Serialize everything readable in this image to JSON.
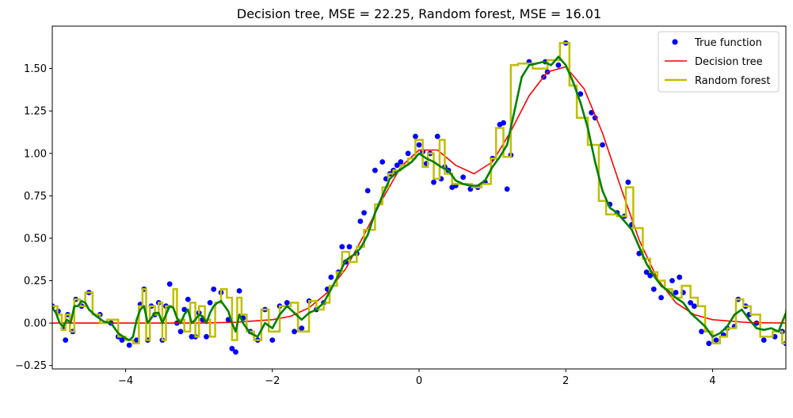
{
  "chart_data": {
    "type": "line",
    "title": "Decision tree, MSE = 22.25, Random forest, MSE = 16.01",
    "xlabel": "",
    "ylabel": "",
    "xlim": [
      -5,
      5
    ],
    "ylim": [
      -0.27,
      1.75
    ],
    "xticks": [
      -4,
      -2,
      0,
      2,
      4
    ],
    "xtick_labels": [
      "−4",
      "−2",
      "0",
      "2",
      "4"
    ],
    "yticks": [
      -0.25,
      0.0,
      0.25,
      0.5,
      0.75,
      1.0,
      1.25,
      1.5
    ],
    "ytick_labels": [
      "−0.25",
      "0.00",
      "0.25",
      "0.50",
      "0.75",
      "1.00",
      "1.25",
      "1.50"
    ],
    "grid": false,
    "legend_position": "top-right",
    "legend": [
      {
        "label": "True function",
        "color": "#0000ff",
        "kind": "marker"
      },
      {
        "label": "Decision tree",
        "color": "#ff0000",
        "kind": "line"
      },
      {
        "label": "Random forest",
        "color": "#bfbf00",
        "kind": "line"
      }
    ],
    "series": [
      {
        "name": "True function",
        "type": "scatter",
        "color": "#0000ff",
        "x": [
          -5.0,
          -4.92,
          -4.85,
          -4.82,
          -4.79,
          -4.72,
          -4.68,
          -4.6,
          -4.5,
          -4.35,
          -4.2,
          -4.1,
          -4.05,
          -3.95,
          -3.85,
          -3.8,
          -3.75,
          -3.7,
          -3.65,
          -3.6,
          -3.55,
          -3.5,
          -3.45,
          -3.4,
          -3.3,
          -3.25,
          -3.2,
          -3.15,
          -3.1,
          -3.05,
          -3.0,
          -2.95,
          -2.9,
          -2.85,
          -2.8,
          -2.7,
          -2.6,
          -2.55,
          -2.5,
          -2.45,
          -2.4,
          -2.3,
          -2.2,
          -2.1,
          -2.0,
          -1.9,
          -1.8,
          -1.7,
          -1.6,
          -1.5,
          -1.4,
          -1.3,
          -1.25,
          -1.2,
          -1.1,
          -1.05,
          -1.0,
          -0.95,
          -0.85,
          -0.8,
          -0.75,
          -0.7,
          -0.6,
          -0.5,
          -0.45,
          -0.4,
          -0.35,
          -0.3,
          -0.25,
          -0.15,
          -0.05,
          0.0,
          0.05,
          0.1,
          0.15,
          0.2,
          0.25,
          0.3,
          0.35,
          0.4,
          0.45,
          0.5,
          0.6,
          0.7,
          0.8,
          0.9,
          1.0,
          1.1,
          1.15,
          1.2,
          1.25,
          1.5,
          1.7,
          1.72,
          1.75,
          1.9,
          2.0,
          2.2,
          2.35,
          2.4,
          2.5,
          2.6,
          2.7,
          2.8,
          2.85,
          2.9,
          3.0,
          3.1,
          3.15,
          3.2,
          3.3,
          3.45,
          3.5,
          3.55,
          3.6,
          3.7,
          3.75,
          3.85,
          3.95,
          4.05,
          4.15,
          4.2,
          4.3,
          4.35,
          4.45,
          4.5,
          4.6,
          4.7,
          4.85,
          4.95,
          5.0
        ],
        "y": [
          0.1,
          0.07,
          -0.03,
          -0.1,
          0.05,
          -0.05,
          0.14,
          0.1,
          0.18,
          0.05,
          0.0,
          -0.08,
          -0.1,
          -0.13,
          -0.1,
          0.11,
          0.2,
          -0.1,
          0.1,
          0.05,
          0.12,
          -0.1,
          0.1,
          0.23,
          0.0,
          -0.05,
          0.08,
          0.14,
          -0.08,
          -0.08,
          0.06,
          0.02,
          -0.08,
          0.12,
          0.2,
          0.18,
          0.02,
          -0.15,
          -0.17,
          0.19,
          0.03,
          -0.05,
          -0.1,
          0.08,
          -0.1,
          0.1,
          0.12,
          -0.05,
          -0.03,
          0.13,
          0.08,
          0.12,
          0.2,
          0.27,
          0.3,
          0.45,
          0.36,
          0.45,
          0.41,
          0.6,
          0.65,
          0.78,
          0.9,
          0.95,
          0.85,
          0.88,
          0.9,
          0.93,
          0.95,
          1.0,
          1.1,
          1.05,
          1.01,
          0.94,
          1.0,
          0.83,
          1.1,
          0.85,
          0.92,
          0.9,
          0.8,
          0.81,
          0.86,
          0.79,
          0.8,
          0.83,
          0.97,
          1.17,
          1.18,
          0.79,
          0.99,
          1.54,
          1.45,
          1.54,
          1.48,
          1.52,
          1.65,
          1.35,
          1.24,
          1.21,
          1.05,
          0.7,
          0.65,
          0.63,
          0.83,
          0.58,
          0.41,
          0.3,
          0.28,
          0.2,
          0.15,
          0.25,
          0.18,
          0.27,
          0.18,
          0.12,
          0.1,
          -0.05,
          -0.12,
          -0.1,
          -0.07,
          -0.03,
          -0.02,
          0.14,
          0.1,
          0.05,
          0.0,
          -0.1,
          -0.08,
          -0.05,
          -0.12
        ]
      },
      {
        "name": "Decision tree",
        "type": "line",
        "color": "#ff0000",
        "x": [
          -5.0,
          -4.0,
          -3.0,
          -2.5,
          -2.0,
          -1.75,
          -1.5,
          -1.25,
          -1.0,
          -0.75,
          -0.5,
          -0.25,
          0.0,
          0.25,
          0.5,
          0.75,
          1.0,
          1.25,
          1.5,
          1.75,
          2.0,
          2.25,
          2.5,
          2.75,
          3.0,
          3.25,
          3.5,
          3.75,
          4.0,
          4.5,
          5.0
        ],
        "y": [
          0.0,
          0.0,
          0.0,
          0.005,
          0.02,
          0.04,
          0.09,
          0.18,
          0.32,
          0.52,
          0.73,
          0.92,
          1.02,
          1.02,
          0.93,
          0.88,
          0.95,
          1.13,
          1.34,
          1.48,
          1.51,
          1.38,
          1.12,
          0.8,
          0.49,
          0.26,
          0.12,
          0.05,
          0.02,
          0.003,
          0.0
        ]
      },
      {
        "name": "Random forest",
        "type": "step",
        "color": "#bfbf00",
        "x": [
          -5.0,
          -4.93,
          -4.87,
          -4.82,
          -4.76,
          -4.7,
          -4.62,
          -4.55,
          -4.45,
          -4.35,
          -4.25,
          -4.1,
          -4.0,
          -3.9,
          -3.82,
          -3.77,
          -3.72,
          -3.67,
          -3.6,
          -3.55,
          -3.5,
          -3.45,
          -3.35,
          -3.3,
          -3.2,
          -3.12,
          -3.05,
          -3.0,
          -2.92,
          -2.85,
          -2.78,
          -2.7,
          -2.62,
          -2.55,
          -2.48,
          -2.42,
          -2.35,
          -2.25,
          -2.15,
          -2.05,
          -1.9,
          -1.75,
          -1.65,
          -1.5,
          -1.4,
          -1.3,
          -1.22,
          -1.12,
          -1.05,
          -0.95,
          -0.85,
          -0.75,
          -0.6,
          -0.5,
          -0.42,
          -0.35,
          -0.25,
          -0.15,
          -0.05,
          0.05,
          0.12,
          0.2,
          0.28,
          0.35,
          0.45,
          0.58,
          0.72,
          0.85,
          0.98,
          1.05,
          1.15,
          1.25,
          1.35,
          1.55,
          1.75,
          1.92,
          2.05,
          2.15,
          2.3,
          2.45,
          2.55,
          2.7,
          2.82,
          2.92,
          3.05,
          3.15,
          3.25,
          3.35,
          3.45,
          3.58,
          3.7,
          3.8,
          3.9,
          4.0,
          4.1,
          4.2,
          4.32,
          4.42,
          4.52,
          4.65,
          4.82,
          4.95,
          5.0
        ],
        "y": [
          0.1,
          0.05,
          -0.04,
          0.05,
          -0.05,
          0.14,
          0.1,
          0.18,
          0.05,
          0.0,
          0.02,
          -0.08,
          -0.1,
          -0.12,
          0.1,
          0.2,
          -0.1,
          0.1,
          0.05,
          0.12,
          -0.1,
          0.1,
          0.2,
          0.02,
          -0.05,
          0.12,
          -0.08,
          0.1,
          0.02,
          -0.08,
          0.12,
          0.2,
          0.15,
          -0.1,
          0.15,
          0.05,
          -0.05,
          -0.1,
          0.08,
          -0.05,
          0.1,
          0.12,
          -0.05,
          0.13,
          0.08,
          0.12,
          0.22,
          0.3,
          0.42,
          0.36,
          0.45,
          0.55,
          0.7,
          0.8,
          0.88,
          0.9,
          0.93,
          0.97,
          1.08,
          0.92,
          1.0,
          0.85,
          1.08,
          0.88,
          0.82,
          0.82,
          0.8,
          0.82,
          0.97,
          1.15,
          0.98,
          1.52,
          1.53,
          1.5,
          1.55,
          1.65,
          1.4,
          1.21,
          1.05,
          0.72,
          0.64,
          0.63,
          0.8,
          0.56,
          0.38,
          0.3,
          0.25,
          0.2,
          0.15,
          0.22,
          0.15,
          0.1,
          -0.05,
          -0.12,
          -0.08,
          -0.03,
          0.14,
          0.1,
          0.05,
          -0.08,
          -0.05,
          -0.12,
          0.08
        ]
      },
      {
        "name": "",
        "type": "line",
        "color": "#008000",
        "x": [
          -5.0,
          -4.95,
          -4.9,
          -4.85,
          -4.8,
          -4.75,
          -4.7,
          -4.65,
          -4.6,
          -4.55,
          -4.5,
          -4.4,
          -4.3,
          -4.2,
          -4.1,
          -4.0,
          -3.95,
          -3.9,
          -3.85,
          -3.8,
          -3.75,
          -3.7,
          -3.65,
          -3.6,
          -3.55,
          -3.5,
          -3.45,
          -3.4,
          -3.35,
          -3.3,
          -3.25,
          -3.2,
          -3.15,
          -3.1,
          -3.05,
          -3.0,
          -2.95,
          -2.9,
          -2.85,
          -2.8,
          -2.75,
          -2.7,
          -2.6,
          -2.55,
          -2.5,
          -2.45,
          -2.4,
          -2.35,
          -2.3,
          -2.2,
          -2.1,
          -2.0,
          -1.9,
          -1.8,
          -1.7,
          -1.6,
          -1.5,
          -1.4,
          -1.3,
          -1.2,
          -1.1,
          -1.0,
          -0.9,
          -0.8,
          -0.7,
          -0.6,
          -0.5,
          -0.4,
          -0.3,
          -0.2,
          -0.1,
          0.0,
          0.1,
          0.2,
          0.3,
          0.4,
          0.5,
          0.6,
          0.7,
          0.8,
          0.9,
          1.0,
          1.1,
          1.2,
          1.3,
          1.4,
          1.5,
          1.6,
          1.7,
          1.8,
          1.9,
          2.0,
          2.1,
          2.2,
          2.3,
          2.4,
          2.5,
          2.6,
          2.7,
          2.8,
          2.9,
          3.0,
          3.1,
          3.2,
          3.3,
          3.4,
          3.5,
          3.6,
          3.7,
          3.8,
          3.9,
          4.0,
          4.1,
          4.2,
          4.3,
          4.4,
          4.5,
          4.6,
          4.7,
          4.8,
          4.9,
          5.0
        ],
        "y": [
          0.09,
          0.06,
          0.0,
          -0.02,
          0.02,
          0.0,
          0.1,
          0.1,
          0.13,
          0.12,
          0.08,
          0.04,
          0.01,
          0.0,
          -0.06,
          -0.09,
          -0.1,
          -0.08,
          0.02,
          0.08,
          0.1,
          0.0,
          0.03,
          0.06,
          0.06,
          0.0,
          0.05,
          0.1,
          0.09,
          0.03,
          0.0,
          0.05,
          0.08,
          0.0,
          0.02,
          0.05,
          0.04,
          0.0,
          0.06,
          0.1,
          0.12,
          0.13,
          0.07,
          0.0,
          -0.05,
          0.05,
          0.0,
          -0.03,
          -0.06,
          -0.08,
          0.0,
          -0.03,
          0.05,
          0.1,
          0.06,
          0.02,
          0.06,
          0.08,
          0.12,
          0.2,
          0.28,
          0.37,
          0.4,
          0.44,
          0.52,
          0.65,
          0.75,
          0.85,
          0.89,
          0.92,
          0.95,
          1.0,
          0.97,
          0.95,
          0.92,
          0.9,
          0.84,
          0.82,
          0.81,
          0.81,
          0.84,
          0.92,
          0.98,
          1.05,
          1.25,
          1.45,
          1.52,
          1.53,
          1.54,
          1.52,
          1.57,
          1.52,
          1.42,
          1.3,
          1.15,
          0.95,
          0.78,
          0.68,
          0.65,
          0.6,
          0.55,
          0.45,
          0.35,
          0.28,
          0.22,
          0.19,
          0.15,
          0.12,
          0.06,
          0.02,
          -0.02,
          -0.08,
          -0.06,
          -0.02,
          0.05,
          0.08,
          0.02,
          -0.03,
          -0.04,
          -0.03,
          -0.05,
          0.06
        ]
      }
    ]
  }
}
